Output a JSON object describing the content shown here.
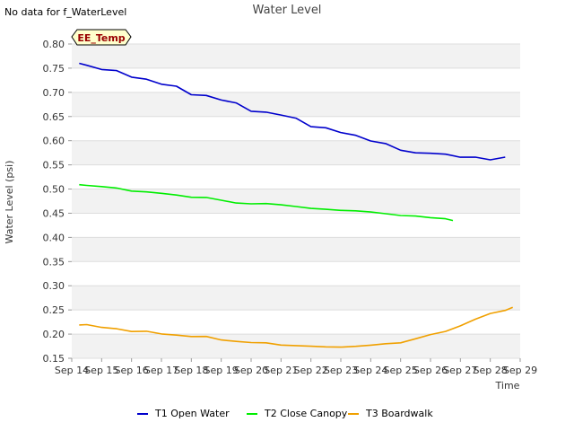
{
  "note": "No data for f_WaterLevel",
  "badge": "EE_Temp",
  "colors": {
    "band": "#f2f2f2",
    "gridline": "#dddddd",
    "badge_fill": "#ffffcc",
    "badge_border": "#000000"
  },
  "chart_data": {
    "type": "line",
    "title": "Water Level",
    "xlabel": "Time",
    "ylabel": "Water Level (psi)",
    "ylim": [
      0.15,
      0.8
    ],
    "yticks": [
      "0.15",
      "0.20",
      "0.25",
      "0.30",
      "0.35",
      "0.40",
      "0.45",
      "0.50",
      "0.55",
      "0.60",
      "0.65",
      "0.70",
      "0.75",
      "0.80"
    ],
    "xlim": [
      "2024-09-14",
      "2024-09-29"
    ],
    "xticks": [
      "Sep 14",
      "Sep 15",
      "Sep 16",
      "Sep 17",
      "Sep 18",
      "Sep 19",
      "Sep 20",
      "Sep 21",
      "Sep 22",
      "Sep 23",
      "Sep 24",
      "Sep 25",
      "Sep 26",
      "Sep 27",
      "Sep 28",
      "Sep 29"
    ],
    "grid": "horizontal alternating bands",
    "legend": "bottom-center",
    "series": [
      {
        "name": "T1 Open Water",
        "color": "#0000cc",
        "points": [
          [
            "2024-09-14 06:00",
            0.76
          ],
          [
            "2024-09-14 12:00",
            0.757
          ],
          [
            "2024-09-15 00:00",
            0.747
          ],
          [
            "2024-09-15 12:00",
            0.744
          ],
          [
            "2024-09-16 00:00",
            0.732
          ],
          [
            "2024-09-16 12:00",
            0.728
          ],
          [
            "2024-09-17 00:00",
            0.716
          ],
          [
            "2024-09-17 12:00",
            0.712
          ],
          [
            "2024-09-18 00:00",
            0.696
          ],
          [
            "2024-09-18 12:00",
            0.694
          ],
          [
            "2024-09-19 00:00",
            0.683
          ],
          [
            "2024-09-19 12:00",
            0.678
          ],
          [
            "2024-09-20 00:00",
            0.662
          ],
          [
            "2024-09-20 12:00",
            0.659
          ],
          [
            "2024-09-21 00:00",
            0.652
          ],
          [
            "2024-09-21 12:00",
            0.647
          ],
          [
            "2024-09-22 00:00",
            0.63
          ],
          [
            "2024-09-22 12:00",
            0.626
          ],
          [
            "2024-09-23 00:00",
            0.616
          ],
          [
            "2024-09-23 12:00",
            0.612
          ],
          [
            "2024-09-24 00:00",
            0.6
          ],
          [
            "2024-09-24 12:00",
            0.593
          ],
          [
            "2024-09-25 00:00",
            0.58
          ],
          [
            "2024-09-25 12:00",
            0.576
          ],
          [
            "2024-09-26 00:00",
            0.574
          ],
          [
            "2024-09-26 12:00",
            0.571
          ],
          [
            "2024-09-27 00:00",
            0.566
          ],
          [
            "2024-09-27 12:00",
            0.567
          ],
          [
            "2024-09-28 00:00",
            0.56
          ],
          [
            "2024-09-28 12:00",
            0.565
          ]
        ]
      },
      {
        "name": "T2 Close Canopy",
        "color": "#00ee00",
        "points": [
          [
            "2024-09-14 06:00",
            0.51
          ],
          [
            "2024-09-14 12:00",
            0.508
          ],
          [
            "2024-09-15 00:00",
            0.504
          ],
          [
            "2024-09-15 12:00",
            0.502
          ],
          [
            "2024-09-16 00:00",
            0.497
          ],
          [
            "2024-09-16 12:00",
            0.494
          ],
          [
            "2024-09-17 00:00",
            0.49
          ],
          [
            "2024-09-17 12:00",
            0.488
          ],
          [
            "2024-09-18 00:00",
            0.484
          ],
          [
            "2024-09-18 12:00",
            0.482
          ],
          [
            "2024-09-19 00:00",
            0.476
          ],
          [
            "2024-09-19 12:00",
            0.472
          ],
          [
            "2024-09-20 00:00",
            0.47
          ],
          [
            "2024-09-20 12:00",
            0.469
          ],
          [
            "2024-09-21 00:00",
            0.467
          ],
          [
            "2024-09-21 12:00",
            0.465
          ],
          [
            "2024-09-22 00:00",
            0.46
          ],
          [
            "2024-09-22 12:00",
            0.457
          ],
          [
            "2024-09-23 00:00",
            0.456
          ],
          [
            "2024-09-23 12:00",
            0.456
          ],
          [
            "2024-09-24 00:00",
            0.452
          ],
          [
            "2024-09-24 12:00",
            0.448
          ],
          [
            "2024-09-25 00:00",
            0.446
          ],
          [
            "2024-09-25 12:00",
            0.445
          ],
          [
            "2024-09-26 00:00",
            0.44
          ],
          [
            "2024-09-26 12:00",
            0.438
          ],
          [
            "2024-09-26 18:00",
            0.436
          ]
        ]
      },
      {
        "name": "T3 Boardwalk",
        "color": "#f0a000",
        "points": [
          [
            "2024-09-14 06:00",
            0.22
          ],
          [
            "2024-09-14 12:00",
            0.219
          ],
          [
            "2024-09-15 00:00",
            0.213
          ],
          [
            "2024-09-15 12:00",
            0.212
          ],
          [
            "2024-09-16 00:00",
            0.206
          ],
          [
            "2024-09-16 12:00",
            0.205
          ],
          [
            "2024-09-17 00:00",
            0.2
          ],
          [
            "2024-09-17 12:00",
            0.199
          ],
          [
            "2024-09-18 00:00",
            0.195
          ],
          [
            "2024-09-18 12:00",
            0.194
          ],
          [
            "2024-09-19 00:00",
            0.188
          ],
          [
            "2024-09-19 12:00",
            0.186
          ],
          [
            "2024-09-20 00:00",
            0.182
          ],
          [
            "2024-09-20 12:00",
            0.181
          ],
          [
            "2024-09-21 00:00",
            0.178
          ],
          [
            "2024-09-21 12:00",
            0.177
          ],
          [
            "2024-09-22 00:00",
            0.174
          ],
          [
            "2024-09-22 12:00",
            0.173
          ],
          [
            "2024-09-23 00:00",
            0.174
          ],
          [
            "2024-09-23 12:00",
            0.175
          ],
          [
            "2024-09-24 00:00",
            0.176
          ],
          [
            "2024-09-24 12:00",
            0.18
          ],
          [
            "2024-09-25 00:00",
            0.183
          ],
          [
            "2024-09-25 12:00",
            0.19
          ],
          [
            "2024-09-26 00:00",
            0.198
          ],
          [
            "2024-09-26 12:00",
            0.206
          ],
          [
            "2024-09-27 00:00",
            0.218
          ],
          [
            "2024-09-27 12:00",
            0.23
          ],
          [
            "2024-09-28 00:00",
            0.242
          ],
          [
            "2024-09-28 12:00",
            0.25
          ],
          [
            "2024-09-28 18:00",
            0.256
          ]
        ]
      }
    ]
  }
}
